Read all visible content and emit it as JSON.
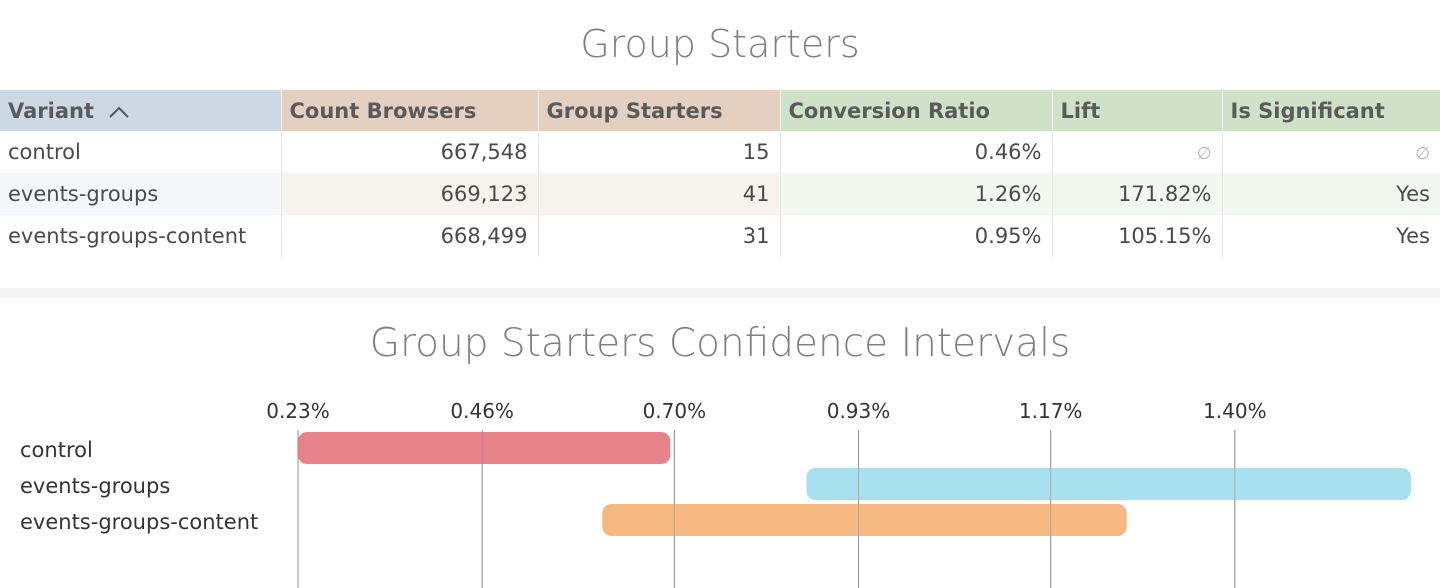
{
  "table_title": "Group Starters",
  "table": {
    "headers": [
      {
        "label": "Variant",
        "bg": "#ccd8e4"
      },
      {
        "label": "Count Browsers",
        "bg": "#e4d0c0"
      },
      {
        "label": "Group Starters",
        "bg": "#e4d0c0"
      },
      {
        "label": "Conversion Ratio",
        "bg": "#cfe2c8"
      },
      {
        "label": "Lift",
        "bg": "#cfe2c8"
      },
      {
        "label": "Is Significant",
        "bg": "#cfe2c8"
      }
    ],
    "sort_icon": "chevron-up-icon",
    "null_icon": "empty-set-icon",
    "rows": [
      {
        "variant": "control",
        "count_browsers": "667,548",
        "group_starters": "15",
        "conversion_ratio": "0.46%",
        "lift": null,
        "is_significant": null
      },
      {
        "variant": "events-groups",
        "count_browsers": "669,123",
        "group_starters": "41",
        "conversion_ratio": "1.26%",
        "lift": "171.82%",
        "is_significant": "Yes"
      },
      {
        "variant": "events-groups-content",
        "count_browsers": "668,499",
        "group_starters": "31",
        "conversion_ratio": "0.95%",
        "lift": "105.15%",
        "is_significant": "Yes"
      }
    ],
    "stripe_colors": {
      "dim": "#f5f7fa",
      "measure_a": "#f6f2ee",
      "measure_b": "#f2f7f0"
    }
  },
  "chart_title": "Group Starters Confidence Intervals",
  "chart_data": {
    "type": "bar",
    "orientation": "horizontal-range",
    "title": "Group Starters Confidence Intervals",
    "xlabel": "",
    "ylabel": "",
    "x_ticks": [
      0.23,
      0.46,
      0.7,
      0.93,
      1.17,
      1.4
    ],
    "x_tick_labels": [
      "0.23%",
      "0.46%",
      "0.70%",
      "0.93%",
      "1.17%",
      "1.40%"
    ],
    "xlim": [
      0.225,
      1.63
    ],
    "grid": true,
    "categories": [
      "control",
      "events-groups",
      "events-groups-content"
    ],
    "series": [
      {
        "category": "control",
        "low": 0.23,
        "high": 0.695,
        "color": "#e87f88"
      },
      {
        "category": "events-groups",
        "low": 0.865,
        "high": 1.62,
        "color": "#a6dff0"
      },
      {
        "category": "events-groups-content",
        "low": 0.61,
        "high": 1.265,
        "color": "#f5b87e"
      }
    ]
  }
}
